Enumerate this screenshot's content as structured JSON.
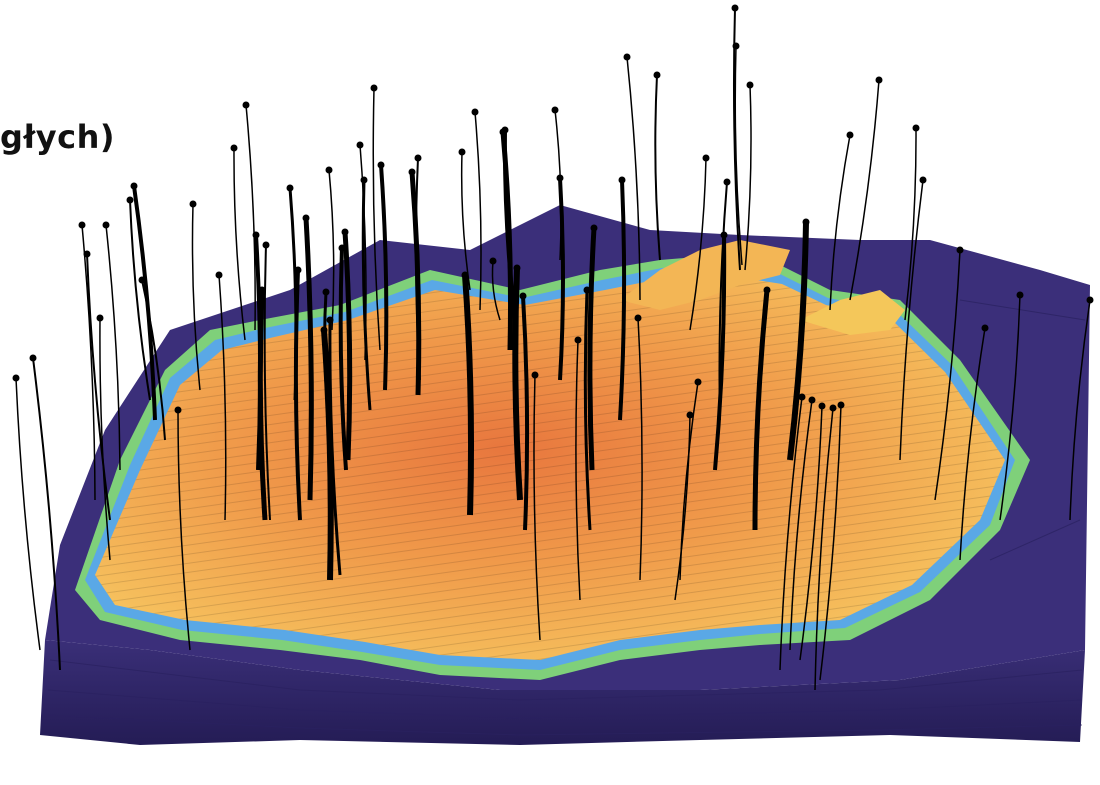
{
  "title_fragment": "głych)",
  "colors": {
    "background": "#ffffff",
    "grid_deep": "#3b2f7a",
    "grid_mid": "#2f2566",
    "grid_side": "#2a2160",
    "zone_orange": "#f2a14c",
    "zone_yellow": "#f4c75a",
    "zone_edge_green": "#a6e07a",
    "zone_edge_blue": "#55a8e8",
    "well_line": "#000000"
  },
  "icons": [
    "well-marker-icon"
  ]
}
